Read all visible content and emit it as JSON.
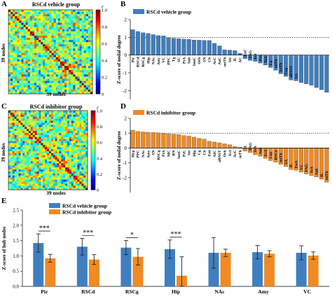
{
  "colors": {
    "vehicle": "#3f7fbf",
    "inhibitor": "#f08a24",
    "heatmap_low": "#00008b",
    "heatmap_high": "#8b0000"
  },
  "panels": {
    "A": {
      "letter": "A",
      "title": "RSCd vehicle group",
      "xlabel": "39 nodes",
      "ylabel": "39 nodes"
    },
    "B": {
      "letter": "B",
      "legend": "RSCd vehicle group"
    },
    "C": {
      "letter": "C",
      "title": "RSCd inhibitor group",
      "xlabel": "39 nodes",
      "ylabel": "39 nodes"
    },
    "D": {
      "letter": "D",
      "legend": "RSCd inhibitor group"
    },
    "E": {
      "letter": "E",
      "legend": [
        "RSCd vehicle group",
        "RSCd inhibitor group"
      ]
    }
  },
  "chart_data": [
    {
      "panel": "A",
      "type": "heatmap",
      "title": "RSCd vehicle group",
      "xlabel": "39 nodes",
      "ylabel": "39 nodes",
      "n": 39,
      "seed": 7,
      "colorbar": {
        "label": "r",
        "range": [
          0,
          1.0
        ],
        "ticks": [
          "0",
          "0.2",
          "0.4",
          "0.6",
          "0.8",
          "1.0"
        ]
      }
    },
    {
      "panel": "B",
      "type": "bar",
      "series": [
        {
          "name": "RSCd vehicle group",
          "color": "#3f7fbf"
        }
      ],
      "ylabel": "Z-score of nodal degree",
      "ylim": [
        -2.5,
        2
      ],
      "yticks": [
        -2,
        -1,
        0,
        1,
        2
      ],
      "threshold": 1,
      "categories": [
        "Pir",
        "RSCd",
        "RSCg",
        "Hip",
        "NAc",
        "Amy",
        "VC",
        "PPC",
        "Tg",
        "SC",
        "PtA",
        "Sub",
        "SenC",
        "Orb",
        "SN",
        "Cb",
        "AcC",
        "AuC",
        "mtTh",
        "Str",
        "IL",
        "AC",
        "EnC",
        "PAG",
        "Ect",
        "PrL",
        "TeA",
        "Cg",
        "mlTh",
        "lctTh",
        "Cep",
        "aBNST",
        "SA",
        "",
        "",
        "",
        "",
        "",
        ""
      ],
      "values": [
        1.43,
        1.33,
        1.26,
        1.22,
        1.15,
        1.1,
        1.08,
        0.97,
        0.95,
        0.92,
        0.9,
        0.89,
        0.85,
        0.84,
        0.83,
        0.82,
        0.66,
        0.52,
        0.3,
        0.28,
        0.25,
        0.1,
        -0.2,
        -0.3,
        -0.35,
        -0.45,
        -0.56,
        -0.7,
        -0.85,
        -1.05,
        -1.2,
        -1.4,
        -1.45,
        -1.55,
        -1.62,
        -1.7,
        -1.83,
        -1.95,
        -2.1
      ]
    },
    {
      "panel": "C",
      "type": "heatmap",
      "title": "RSCd inhibitor group",
      "xlabel": "39 nodes",
      "ylabel": "39 nodes",
      "n": 39,
      "seed": 23,
      "colorbar": {
        "label": "r",
        "range": [
          0,
          1.0
        ],
        "ticks": [
          "0",
          "0.2",
          "0.4",
          "0.6",
          "0.8",
          "1.0"
        ]
      }
    },
    {
      "panel": "D",
      "type": "bar",
      "series": [
        {
          "name": "RSCd inhibitor group",
          "color": "#f08a24"
        }
      ],
      "ylabel": "Z-score of nodal degree",
      "ylim": [
        -3,
        2
      ],
      "yticks": [
        -2,
        -1,
        0,
        1,
        2
      ],
      "threshold": 1,
      "categories": [
        "Hyp",
        "PPC",
        "NAc",
        "Amy",
        "SN",
        "RSCg",
        "PtA",
        "MC",
        "RN",
        "SenC",
        "PrL",
        "Str",
        "Hip",
        "Cg",
        "Cb",
        "Ent",
        "AIC",
        "aBNST",
        "Orb",
        "Ect",
        "AcC",
        "mTh",
        "IL",
        "PAG",
        "TeA",
        "Sub",
        "FrA",
        "Cep",
        "RSCd",
        "mtTh",
        "SA",
        "IL",
        "EnA",
        "VC",
        "PAG",
        "TeA",
        "Sub",
        "IL",
        "mlTh"
      ],
      "values": [
        1.2,
        1.12,
        1.08,
        1.06,
        1.04,
        1.02,
        1.0,
        0.95,
        0.93,
        0.9,
        0.84,
        0.8,
        0.73,
        0.65,
        0.6,
        0.45,
        0.4,
        0.35,
        0.28,
        0.22,
        0.1,
        0.05,
        -0.2,
        -0.3,
        -0.45,
        -0.55,
        -0.7,
        -0.85,
        -0.95,
        -1.1,
        -1.25,
        -1.45,
        -1.5,
        -1.62,
        -1.75,
        -1.85,
        -1.95,
        -2.1,
        -2.3
      ]
    },
    {
      "panel": "E",
      "type": "bar",
      "ylabel": "Z-score of hub nodes",
      "ylim": [
        0,
        2.5
      ],
      "yticks": [
        0,
        0.5,
        1.0,
        1.5,
        2.0,
        2.5
      ],
      "categories": [
        "Pir",
        "RSCd",
        "RSCg",
        "Hip",
        "NAc",
        "Amy",
        "VC"
      ],
      "series": [
        {
          "name": "RSCd vehicle group",
          "color": "#3f7fbf",
          "values": [
            1.42,
            1.3,
            1.27,
            1.22,
            1.1,
            1.12,
            1.1
          ],
          "errors": [
            0.3,
            0.27,
            0.23,
            0.3,
            0.5,
            0.22,
            0.23
          ]
        },
        {
          "name": "RSCd inhibitor group",
          "color": "#f08a24",
          "values": [
            0.92,
            0.88,
            0.97,
            0.35,
            1.1,
            1.07,
            1.01
          ],
          "errors": [
            0.13,
            0.16,
            0.27,
            0.62,
            0.12,
            0.1,
            0.12
          ]
        }
      ],
      "significance": [
        "***",
        "***",
        "*",
        "***",
        "",
        "",
        ""
      ]
    }
  ]
}
